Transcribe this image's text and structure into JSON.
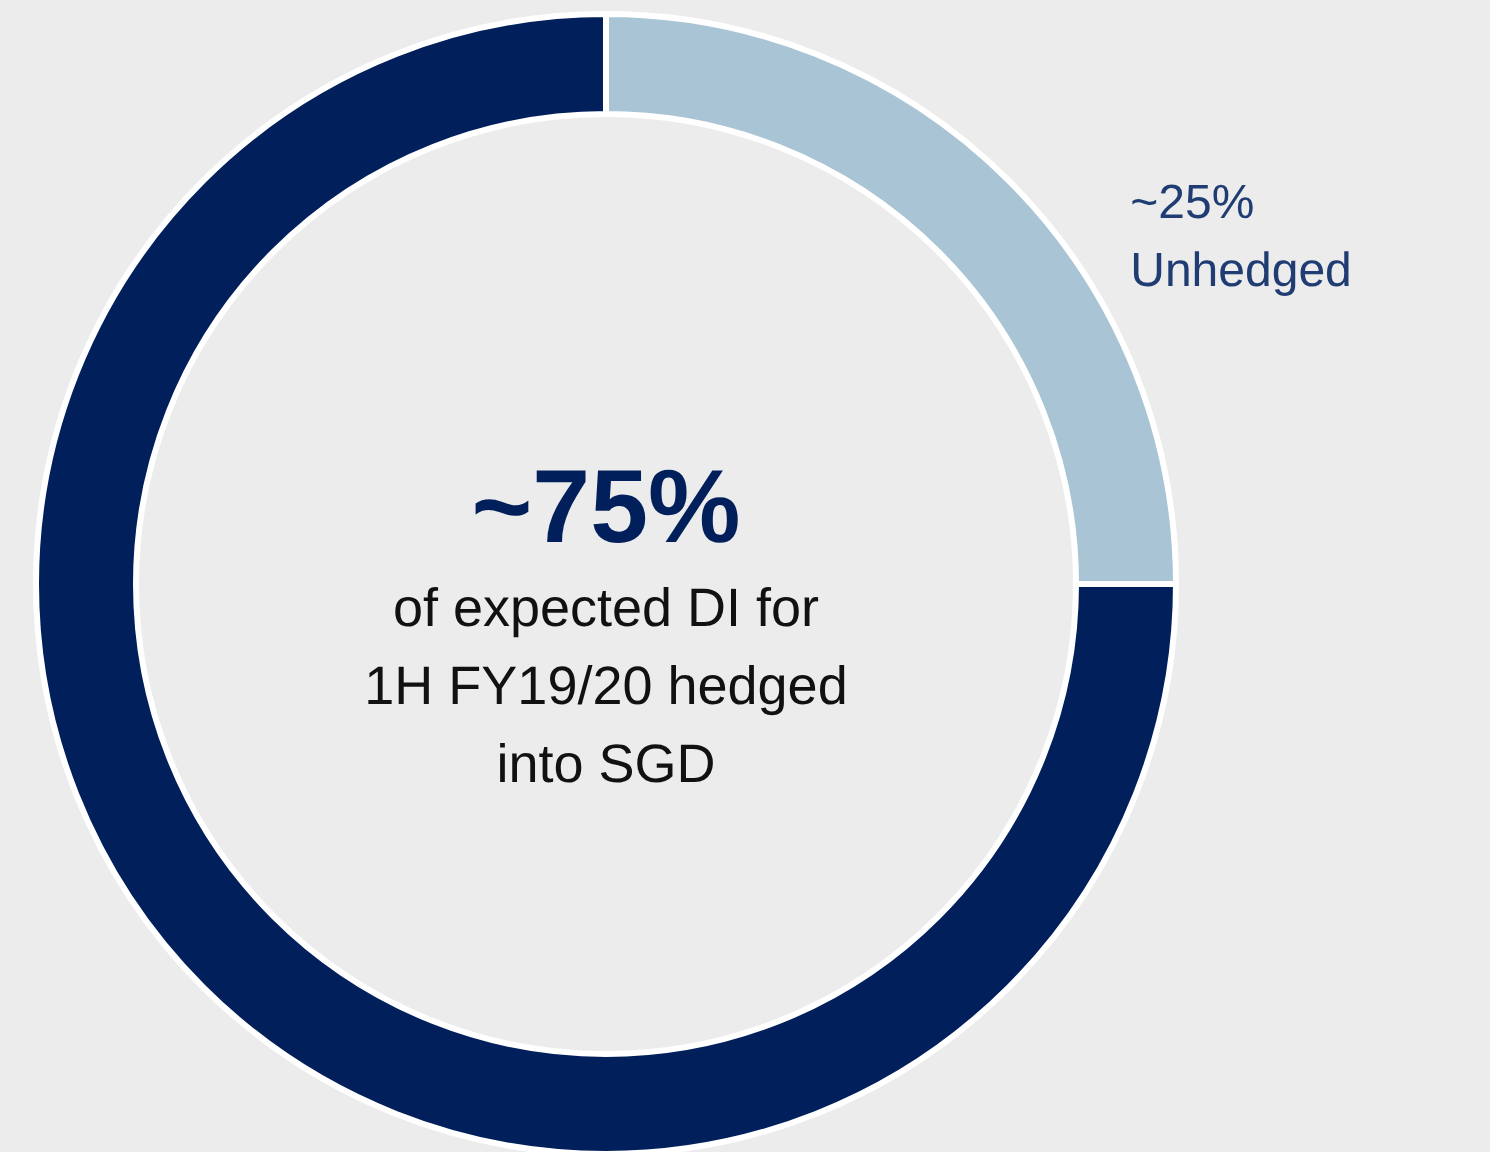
{
  "chart_data": {
    "type": "donut",
    "categories": [
      "Unhedged",
      null
    ],
    "values": [
      25,
      75
    ],
    "colors": [
      "#a9c4d4",
      "#001f5b"
    ],
    "value_labels": [
      "~25%",
      "~75%"
    ],
    "annotations": [
      "of expected DI for 1H FY19/20 hedged into SGD"
    ]
  }
}
